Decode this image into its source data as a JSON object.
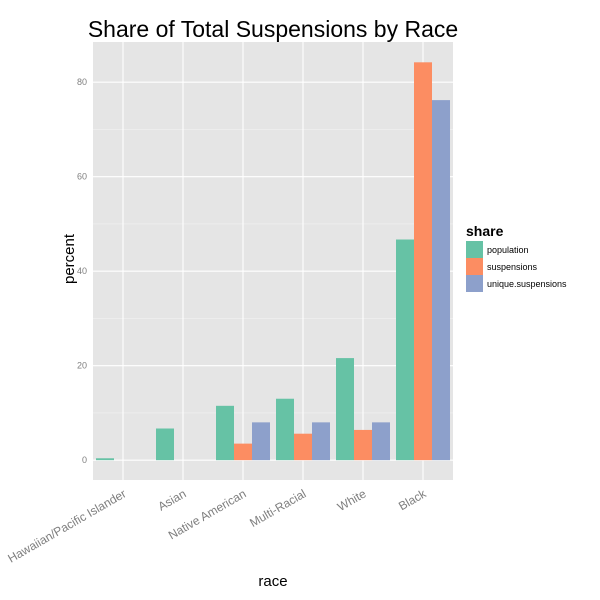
{
  "chart_data": {
    "type": "bar",
    "title": "Share of Total Suspensions by Race",
    "xlabel": "race",
    "ylabel": "percent",
    "categories": [
      "Hawaiian/Pacific Islander",
      "Asian",
      "Native American",
      "Multi-Racial",
      "White",
      "Black"
    ],
    "yticks": [
      0,
      20,
      40,
      60,
      80
    ],
    "ylim": [
      -4.2,
      88.5
    ],
    "grid": true,
    "legend_position": "right",
    "legend_title": "share",
    "series": [
      {
        "name": "population",
        "color": "#66c2a5",
        "values": [
          0.4,
          6.7,
          11.5,
          13.0,
          21.6,
          46.7
        ]
      },
      {
        "name": "suspensions",
        "color": "#fc8d62",
        "values": [
          0.0,
          0.0,
          3.5,
          5.6,
          6.4,
          84.2
        ]
      },
      {
        "name": "unique.suspensions",
        "color": "#8da0cb",
        "values": [
          0.0,
          0.0,
          8.0,
          8.0,
          8.0,
          76.2
        ]
      }
    ]
  }
}
